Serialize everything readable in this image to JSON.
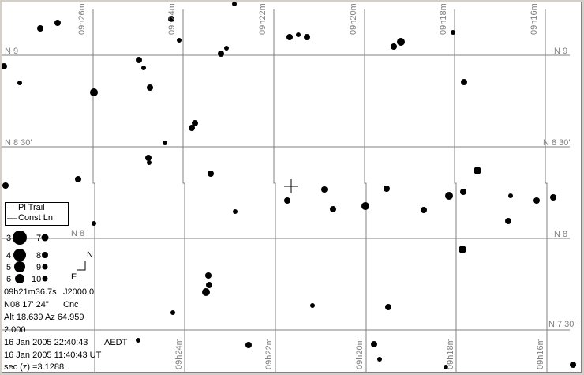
{
  "ra_labels_top": [
    "09h26m",
    "09h24m",
    "09h22m",
    "09h20m",
    "09h18m",
    "09h16m"
  ],
  "ra_labels_bottom": [
    "09h24m",
    "09h22m",
    "09h20m",
    "09h18m",
    "09h16m"
  ],
  "dec_labels_left": [
    "N 9",
    "N 8 30'",
    "N 8"
  ],
  "dec_labels_right": [
    "N 9",
    "N 8 30'",
    "N 8",
    "N 7 30'"
  ],
  "legend": {
    "items": [
      "Pl Trail",
      "Const Ln"
    ]
  },
  "magnitudes": [
    "3",
    "4",
    "5",
    "6",
    "7",
    "8",
    "9",
    "10"
  ],
  "compass": {
    "north": "N",
    "east": "E"
  },
  "info": {
    "ra": "09h21m36.7s",
    "epoch": "J2000.0",
    "dec": "N08 17' 24\"",
    "constellation": "Cnc",
    "altaz": "Alt 18.639  Az 64.959",
    "scale": "2.000",
    "local_time": "16 Jan 2005 22:40:43",
    "timezone": "AEDT",
    "ut_time": "16 Jan 2005 11:40:43 UT",
    "airmass": "sec (z)  =3.1288"
  },
  "colors": {
    "grid": "#808080",
    "stars": "#000000",
    "background": "#ffffff"
  }
}
